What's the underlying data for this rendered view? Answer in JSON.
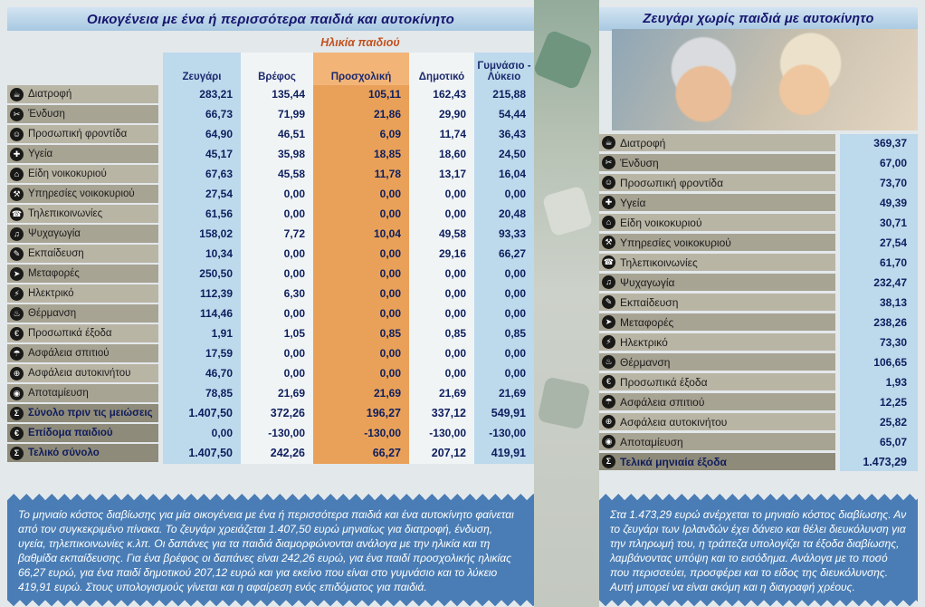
{
  "colors": {
    "accent_orange": "#e9a159",
    "column_blue": "#bdd9ec",
    "footer_blue": "#4a7db5",
    "title_navy": "#16166e",
    "number_navy": "#0e1f5e"
  },
  "left": {
    "title": "Οικογένεια με ένα ή περισσότερα παιδιά και αυτοκίνητο",
    "age_header": "Ηλικία παιδιού",
    "columns": [
      "Ζευγάρι",
      "Βρέφος",
      "Προσχολική",
      "Δημοτικό",
      "Γυμνάσιο - Λύκειο"
    ],
    "rows": [
      {
        "label": "Διατροφή",
        "icon": "☕",
        "icon_name": "food-icon",
        "type": "normal",
        "values": [
          "283,21",
          "135,44",
          "105,11",
          "162,43",
          "215,88"
        ]
      },
      {
        "label": "Ένδυση",
        "icon": "✂",
        "icon_name": "clothing-icon",
        "type": "normal",
        "values": [
          "66,73",
          "71,99",
          "21,86",
          "29,90",
          "54,44"
        ]
      },
      {
        "label": "Προσωπική φροντίδα",
        "icon": "☺",
        "icon_name": "personal-care-icon",
        "type": "normal",
        "values": [
          "64,90",
          "46,51",
          "6,09",
          "11,74",
          "36,43"
        ]
      },
      {
        "label": "Υγεία",
        "icon": "✚",
        "icon_name": "health-icon",
        "type": "normal",
        "values": [
          "45,17",
          "35,98",
          "18,85",
          "18,60",
          "24,50"
        ]
      },
      {
        "label": "Είδη νοικοκυριού",
        "icon": "⌂",
        "icon_name": "household-items-icon",
        "type": "normal",
        "values": [
          "67,63",
          "45,58",
          "11,78",
          "13,17",
          "16,04"
        ]
      },
      {
        "label": "Υπηρεσίες νοικοκυριού",
        "icon": "⚒",
        "icon_name": "household-services-icon",
        "type": "normal",
        "values": [
          "27,54",
          "0,00",
          "0,00",
          "0,00",
          "0,00"
        ]
      },
      {
        "label": "Τηλεπικοινωνίες",
        "icon": "☎",
        "icon_name": "telecom-icon",
        "type": "normal",
        "values": [
          "61,56",
          "0,00",
          "0,00",
          "0,00",
          "20,48"
        ]
      },
      {
        "label": "Ψυχαγωγία",
        "icon": "♫",
        "icon_name": "entertainment-icon",
        "type": "normal",
        "values": [
          "158,02",
          "7,72",
          "10,04",
          "49,58",
          "93,33"
        ]
      },
      {
        "label": "Εκπαίδευση",
        "icon": "✎",
        "icon_name": "education-icon",
        "type": "normal",
        "values": [
          "10,34",
          "0,00",
          "0,00",
          "29,16",
          "66,27"
        ]
      },
      {
        "label": "Μεταφορές",
        "icon": "➤",
        "icon_name": "transport-icon",
        "type": "normal",
        "values": [
          "250,50",
          "0,00",
          "0,00",
          "0,00",
          "0,00"
        ]
      },
      {
        "label": "Ηλεκτρικό",
        "icon": "⚡",
        "icon_name": "electricity-icon",
        "type": "normal",
        "values": [
          "112,39",
          "6,30",
          "0,00",
          "0,00",
          "0,00"
        ]
      },
      {
        "label": "Θέρμανση",
        "icon": "♨",
        "icon_name": "heating-icon",
        "type": "normal",
        "values": [
          "114,46",
          "0,00",
          "0,00",
          "0,00",
          "0,00"
        ]
      },
      {
        "label": "Προσωπικά έξοδα",
        "icon": "€",
        "icon_name": "personal-expenses-icon",
        "type": "normal",
        "values": [
          "1,91",
          "1,05",
          "0,85",
          "0,85",
          "0,85"
        ]
      },
      {
        "label": "Ασφάλεια σπιτιού",
        "icon": "☂",
        "icon_name": "home-insurance-icon",
        "type": "normal",
        "values": [
          "17,59",
          "0,00",
          "0,00",
          "0,00",
          "0,00"
        ]
      },
      {
        "label": "Ασφάλεια αυτοκινήτου",
        "icon": "⊕",
        "icon_name": "car-insurance-icon",
        "type": "normal",
        "values": [
          "46,70",
          "0,00",
          "0,00",
          "0,00",
          "0,00"
        ]
      },
      {
        "label": "Αποταμίευση",
        "icon": "◉",
        "icon_name": "savings-icon",
        "type": "normal",
        "values": [
          "78,85",
          "21,69",
          "21,69",
          "21,69",
          "21,69"
        ]
      },
      {
        "label": "Σύνολο πριν τις μειώσεις",
        "icon": "Σ",
        "icon_name": "subtotal-icon",
        "type": "subtotal",
        "values": [
          "1.407,50",
          "372,26",
          "196,27",
          "337,12",
          "549,91"
        ]
      },
      {
        "label": "Επίδομα παιδιού",
        "icon": "€",
        "icon_name": "child-benefit-icon",
        "type": "benefit",
        "values": [
          "0,00",
          "-130,00",
          "-130,00",
          "-130,00",
          "-130,00"
        ]
      },
      {
        "label": "Τελικό σύνολο",
        "icon": "Σ",
        "icon_name": "total-icon",
        "type": "total",
        "values": [
          "1.407,50",
          "242,26",
          "66,27",
          "207,12",
          "419,91"
        ]
      }
    ],
    "footer": "Το μηνιαίο κόστος διαβίωσης για μία οικογένεια με ένα ή περισσότερα παιδιά και ένα αυτοκίνητο φαίνεται από τον συγκεκριμένο πίνακα. Το ζευγάρι χρειάζεται 1.407,50 ευρώ μηνιαίως για διατροφή, ένδυση, υγεία, τηλεπικοινωνίες κ.λπ. Οι δαπάνες για τα παιδιά διαμορφώνονται ανάλογα με την ηλικία και τη βαθμίδα εκπαίδευσης. Για ένα βρέφος οι δαπάνες είναι 242,26 ευρώ, για ένα παιδί προσχολικής ηλικίας 66,27 ευρώ, για ένα παιδί δημοτικού 207,12 ευρώ και για εκείνο που είναι στο γυμνάσιο και το λύκειο 419,91 ευρώ. Στους υπολογισμούς γίνεται και η αφαίρεση ενός επιδόματος για παιδιά."
  },
  "right": {
    "title": "Ζευγάρι χωρίς παιδιά με αυτοκίνητο",
    "rows": [
      {
        "label": "Διατροφή",
        "icon": "☕",
        "icon_name": "food-icon",
        "type": "normal",
        "value": "369,37"
      },
      {
        "label": "Ένδυση",
        "icon": "✂",
        "icon_name": "clothing-icon",
        "type": "normal",
        "value": "67,00"
      },
      {
        "label": "Προσωπική φροντίδα",
        "icon": "☺",
        "icon_name": "personal-care-icon",
        "type": "normal",
        "value": "73,70"
      },
      {
        "label": "Υγεία",
        "icon": "✚",
        "icon_name": "health-icon",
        "type": "normal",
        "value": "49,39"
      },
      {
        "label": "Είδη νοικοκυριού",
        "icon": "⌂",
        "icon_name": "household-items-icon",
        "type": "normal",
        "value": "30,71"
      },
      {
        "label": "Υπηρεσίες νοικοκυριού",
        "icon": "⚒",
        "icon_name": "household-services-icon",
        "type": "normal",
        "value": "27,54"
      },
      {
        "label": "Τηλεπικοινωνίες",
        "icon": "☎",
        "icon_name": "telecom-icon",
        "type": "normal",
        "value": "61,70"
      },
      {
        "label": "Ψυχαγωγία",
        "icon": "♫",
        "icon_name": "entertainment-icon",
        "type": "normal",
        "value": "232,47"
      },
      {
        "label": "Εκπαίδευση",
        "icon": "✎",
        "icon_name": "education-icon",
        "type": "normal",
        "value": "38,13"
      },
      {
        "label": "Μεταφορές",
        "icon": "➤",
        "icon_name": "transport-icon",
        "type": "normal",
        "value": "238,26"
      },
      {
        "label": "Ηλεκτρικό",
        "icon": "⚡",
        "icon_name": "electricity-icon",
        "type": "normal",
        "value": "73,30"
      },
      {
        "label": "Θέρμανση",
        "icon": "♨",
        "icon_name": "heating-icon",
        "type": "normal",
        "value": "106,65"
      },
      {
        "label": "Προσωπικά έξοδα",
        "icon": "€",
        "icon_name": "personal-expenses-icon",
        "type": "normal",
        "value": "1,93"
      },
      {
        "label": "Ασφάλεια σπιτιού",
        "icon": "☂",
        "icon_name": "home-insurance-icon",
        "type": "normal",
        "value": "12,25"
      },
      {
        "label": "Ασφάλεια αυτοκινήτου",
        "icon": "⊕",
        "icon_name": "car-insurance-icon",
        "type": "normal",
        "value": "25,82"
      },
      {
        "label": "Αποταμίευση",
        "icon": "◉",
        "icon_name": "savings-icon",
        "type": "normal",
        "value": "65,07"
      },
      {
        "label": "Τελικά μηνιαία έξοδα",
        "icon": "Σ",
        "icon_name": "total-icon",
        "type": "total",
        "value": "1.473,29"
      }
    ],
    "footer": "Στα 1.473,29 ευρώ ανέρχεται το μηνιαίο κόστος διαβίωσης. Αν το ζευγάρι των Ιρλανδών έχει δάνειο και θέλει διευκόλυνση για την πληρωμή του, η τράπεζα υπολογίζει τα έξοδα διαβίωσης, λαμβάνοντας υπόψη και το εισόδημα. Ανάλογα με το ποσό που περισσεύει, προσφέρει και το είδος της διευκόλυνσης. Αυτή μπορεί να είναι ακόμη και η διαγραφή χρέους."
  }
}
